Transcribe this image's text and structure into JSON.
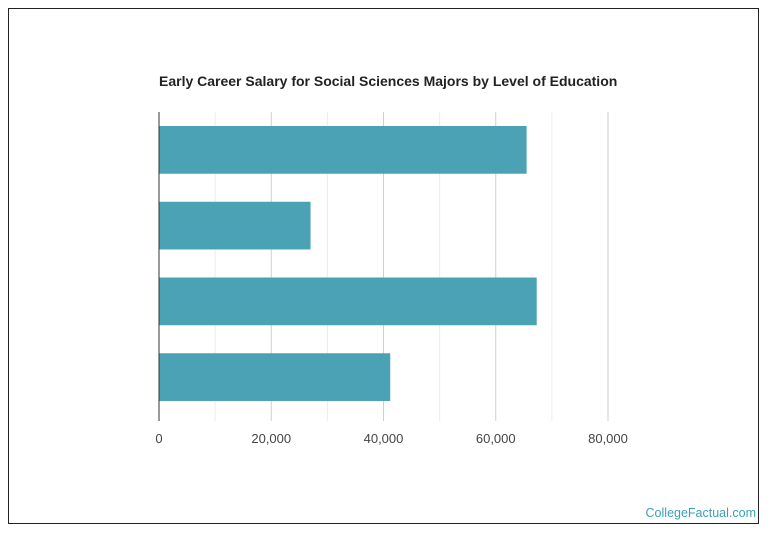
{
  "chart_data": {
    "type": "bar",
    "orientation": "horizontal",
    "title": "Early Career Salary for Social Sciences Majors by Level of Education",
    "categories": [
      "",
      "",
      "",
      ""
    ],
    "values": [
      65500,
      27000,
      67300,
      41200
    ],
    "xlim": [
      0,
      80000
    ],
    "xticks": [
      0,
      20000,
      40000,
      60000,
      80000
    ],
    "xtick_labels": [
      "0",
      "20,000",
      "40,000",
      "60,000",
      "80,000"
    ],
    "xlabel": "",
    "ylabel": "",
    "grid": true,
    "colors": {
      "bar": "#4aa2b4",
      "grid": "#d9d9d9",
      "axis": "#333333"
    }
  },
  "watermark": "CollegeFactual.com"
}
